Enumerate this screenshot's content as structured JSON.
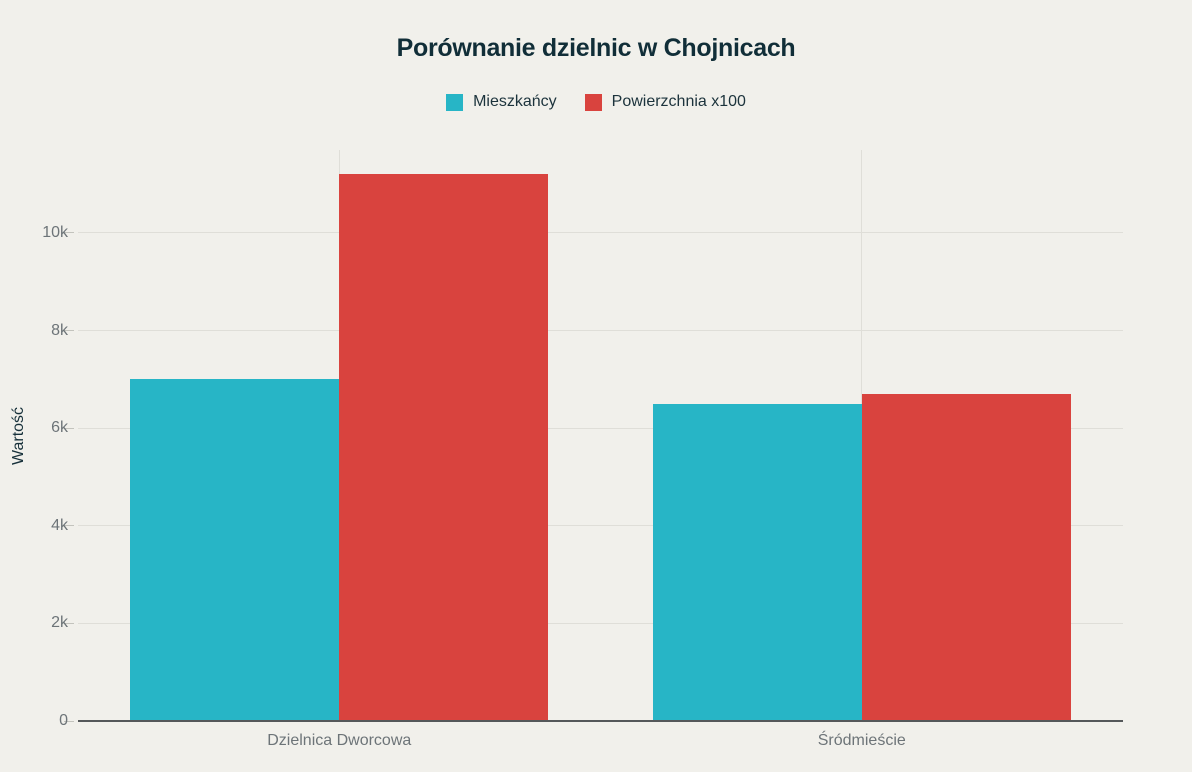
{
  "title": "Porównanie dzielnic w Chojnicach",
  "y_axis_title": "Wartość",
  "chart_data": {
    "type": "bar",
    "title": "Porównanie dzielnic w Chojnicach",
    "categories": [
      "Dzielnica Dworcowa",
      "Śródmieście"
    ],
    "series": [
      {
        "name": "Mieszkańcy",
        "color": "#27b5c6",
        "values": [
          7000,
          6500
        ]
      },
      {
        "name": "Powierzchnia x100",
        "color": "#d9433e",
        "values": [
          11200,
          6700
        ]
      }
    ],
    "xlabel": "",
    "ylabel": "Wartość",
    "ylim": [
      0,
      11700
    ],
    "yticks": [
      {
        "value": 0,
        "label": "0"
      },
      {
        "value": 2000,
        "label": "2k"
      },
      {
        "value": 4000,
        "label": "4k"
      },
      {
        "value": 6000,
        "label": "6k"
      },
      {
        "value": 8000,
        "label": "8k"
      },
      {
        "value": 10000,
        "label": "10k"
      }
    ],
    "grid": {
      "horizontal": true,
      "vertical_category_lines": true
    },
    "legend_position": "top-center"
  },
  "colors": {
    "background": "#f1f0eb",
    "title_text": "#112e38",
    "legend_text": "#1c333c",
    "axis_text": "#6d7478",
    "gridline": "#dfded8",
    "tick_dash": "#c3c3bd",
    "axis_line": "#55585a",
    "y_axis_title_text": "#16303a"
  }
}
